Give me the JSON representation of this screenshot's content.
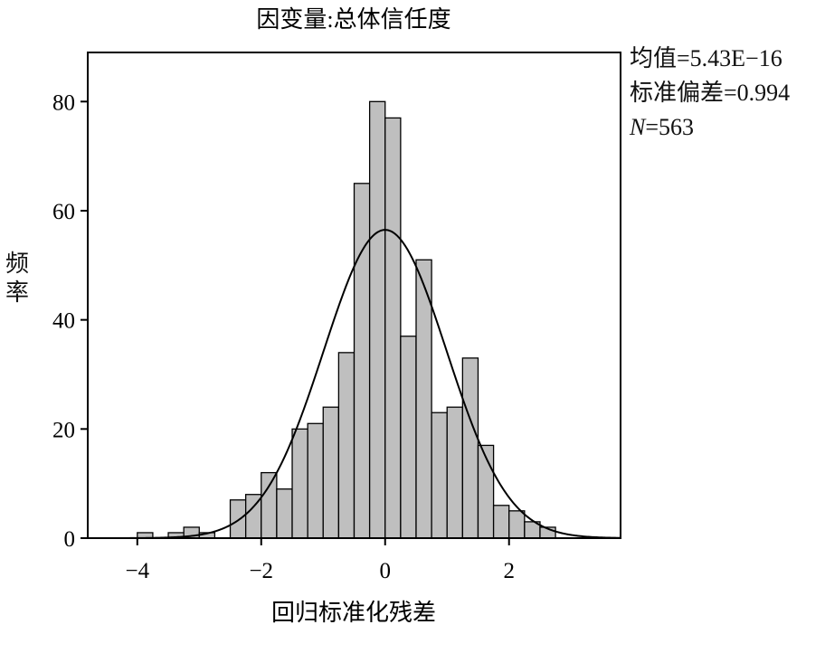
{
  "stats": {
    "mean": "均值=5.43E−16",
    "std": "标准偏差=0.994",
    "n_label": "N",
    "n_value": "=563"
  },
  "chart_data": {
    "type": "bar",
    "title": "因变量:总体信任度",
    "xlabel": "回归标准化残差",
    "ylabel_chars": [
      "频",
      "率"
    ],
    "xlim": [
      -4.8,
      3.8
    ],
    "ylim": [
      0,
      89
    ],
    "xticks": [
      -4,
      -2,
      0,
      2
    ],
    "xtick_labels": [
      "−4",
      "−2",
      "0",
      "2"
    ],
    "yticks": [
      0,
      20,
      40,
      60,
      80
    ],
    "ytick_labels": [
      "0",
      "20",
      "40",
      "60",
      "80"
    ],
    "bin_width": 0.25,
    "bins": [
      {
        "x": -4.0,
        "value": 1
      },
      {
        "x": -3.5,
        "value": 1
      },
      {
        "x": -3.25,
        "value": 2
      },
      {
        "x": -3.0,
        "value": 1
      },
      {
        "x": -2.5,
        "value": 7
      },
      {
        "x": -2.25,
        "value": 8
      },
      {
        "x": -2.0,
        "value": 12
      },
      {
        "x": -1.75,
        "value": 9
      },
      {
        "x": -1.5,
        "value": 20
      },
      {
        "x": -1.25,
        "value": 21
      },
      {
        "x": -1.0,
        "value": 24
      },
      {
        "x": -0.75,
        "value": 34
      },
      {
        "x": -0.5,
        "value": 65
      },
      {
        "x": -0.25,
        "value": 80
      },
      {
        "x": 0.0,
        "value": 77
      },
      {
        "x": 0.25,
        "value": 37
      },
      {
        "x": 0.5,
        "value": 51
      },
      {
        "x": 0.75,
        "value": 23
      },
      {
        "x": 1.0,
        "value": 24
      },
      {
        "x": 1.25,
        "value": 33
      },
      {
        "x": 1.5,
        "value": 17
      },
      {
        "x": 1.75,
        "value": 6
      },
      {
        "x": 2.0,
        "value": 5
      },
      {
        "x": 2.25,
        "value": 3
      },
      {
        "x": 2.5,
        "value": 2
      }
    ],
    "normal_curve": {
      "mean": 0,
      "sd": 0.994,
      "n": 563
    },
    "bar_color": "#bfbfbf",
    "bar_stroke": "#000000",
    "curve_color": "#000000",
    "grid": false,
    "legend": "none"
  }
}
